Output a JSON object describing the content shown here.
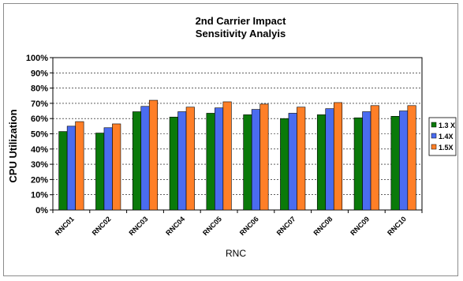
{
  "chart_data": {
    "type": "bar",
    "title_lines": [
      "2nd Carrier Impact",
      "Sensitivity Analyis"
    ],
    "xlabel": "RNC",
    "ylabel": "CPU Utilization",
    "categories": [
      "RNC01",
      "RNC02",
      "RNC03",
      "RNC04",
      "RNC05",
      "RNC06",
      "RNC07",
      "RNC08",
      "RNC09",
      "RNC10"
    ],
    "y_ticks": [
      "0%",
      "10%",
      "20%",
      "30%",
      "40%",
      "50%",
      "60%",
      "70%",
      "80%",
      "90%",
      "100%"
    ],
    "ylim": [
      0,
      100
    ],
    "grid": true,
    "legend_position": "right",
    "series": [
      {
        "name": "1.3 X",
        "color": "#0a7a0a",
        "values": [
          51.5,
          50.5,
          64.5,
          61,
          63.5,
          62.5,
          60,
          62.5,
          60.5,
          61.5
        ]
      },
      {
        "name": "1.4X",
        "color": "#4a6cf0",
        "values": [
          55,
          54,
          68,
          64.5,
          67,
          66,
          63.5,
          66.5,
          64.5,
          65
        ]
      },
      {
        "name": "1.5X",
        "color": "#ff7f27",
        "values": [
          58,
          56.5,
          72,
          67.5,
          71,
          69.5,
          67.5,
          70.5,
          68.5,
          68.5
        ]
      }
    ]
  }
}
